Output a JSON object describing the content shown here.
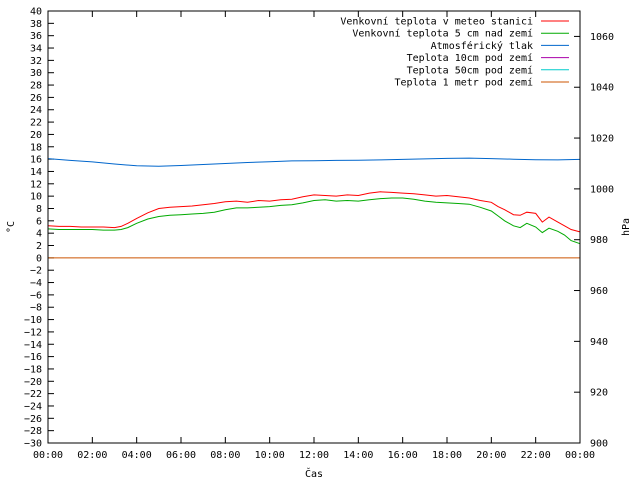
{
  "chart_data": {
    "type": "line",
    "xlabel": "Čas",
    "ylabel_left": "°C",
    "ylabel_right": "hPa",
    "x_ticks": [
      "00:00",
      "02:00",
      "04:00",
      "06:00",
      "08:00",
      "10:00",
      "12:00",
      "14:00",
      "16:00",
      "18:00",
      "20:00",
      "22:00",
      "00:00"
    ],
    "x_range_hours": [
      0,
      24
    ],
    "ylim_left": [
      -30,
      40
    ],
    "y_ticks_left": [
      -30,
      -28,
      -26,
      -24,
      -22,
      -20,
      -18,
      -16,
      -14,
      -12,
      -10,
      -8,
      -6,
      -4,
      -2,
      0,
      2,
      4,
      6,
      8,
      10,
      12,
      14,
      16,
      18,
      20,
      22,
      24,
      26,
      28,
      30,
      32,
      34,
      36,
      38,
      40
    ],
    "ylim_right": [
      900,
      1070
    ],
    "y_ticks_right": [
      900,
      920,
      940,
      960,
      980,
      1000,
      1020,
      1040,
      1060
    ],
    "legend_position": "top-right",
    "series": [
      {
        "name": "Venkovní teplota v meteo stanici",
        "axis": "left",
        "color": "#ff0000",
        "x": [
          0,
          0.5,
          1,
          1.5,
          2,
          2.5,
          3,
          3.3,
          3.6,
          4,
          4.5,
          5,
          5.5,
          6,
          6.5,
          7,
          7.5,
          8,
          8.5,
          9,
          9.5,
          10,
          10.5,
          11,
          11.5,
          12,
          12.5,
          13,
          13.5,
          14,
          14.5,
          15,
          15.5,
          16,
          16.5,
          17,
          17.5,
          18,
          18.5,
          19,
          19.5,
          20,
          20.3,
          20.6,
          21,
          21.3,
          21.6,
          22,
          22.3,
          22.6,
          23,
          23.3,
          23.6,
          24
        ],
        "values": [
          5.2,
          5.1,
          5.1,
          5.0,
          5.0,
          5.0,
          4.9,
          5.1,
          5.6,
          6.4,
          7.3,
          8.0,
          8.2,
          8.3,
          8.4,
          8.6,
          8.8,
          9.1,
          9.2,
          9.0,
          9.3,
          9.2,
          9.4,
          9.5,
          9.9,
          10.2,
          10.1,
          10.0,
          10.2,
          10.1,
          10.5,
          10.7,
          10.6,
          10.5,
          10.4,
          10.2,
          10.0,
          10.1,
          9.9,
          9.7,
          9.3,
          9.0,
          8.3,
          7.8,
          7.0,
          6.9,
          7.4,
          7.2,
          5.8,
          6.6,
          5.8,
          5.2,
          4.6,
          4.2
        ]
      },
      {
        "name": "Venkovní teplota 5 cm nad zemí",
        "axis": "left",
        "color": "#00aa00",
        "x": [
          0,
          0.5,
          1,
          1.5,
          2,
          2.5,
          3,
          3.3,
          3.6,
          4,
          4.5,
          5,
          5.5,
          6,
          6.5,
          7,
          7.5,
          8,
          8.5,
          9,
          9.5,
          10,
          10.5,
          11,
          11.5,
          12,
          12.5,
          13,
          13.5,
          14,
          14.5,
          15,
          15.5,
          16,
          16.5,
          17,
          17.5,
          18,
          18.5,
          19,
          19.5,
          20,
          20.3,
          20.6,
          21,
          21.3,
          21.6,
          22,
          22.3,
          22.6,
          23,
          23.3,
          23.6,
          24
        ],
        "values": [
          4.7,
          4.6,
          4.6,
          4.6,
          4.6,
          4.5,
          4.5,
          4.6,
          4.9,
          5.6,
          6.3,
          6.7,
          6.9,
          7.0,
          7.1,
          7.2,
          7.4,
          7.8,
          8.1,
          8.1,
          8.2,
          8.3,
          8.5,
          8.6,
          8.9,
          9.3,
          9.4,
          9.2,
          9.3,
          9.2,
          9.4,
          9.6,
          9.7,
          9.7,
          9.5,
          9.2,
          9.0,
          8.9,
          8.8,
          8.7,
          8.2,
          7.6,
          6.8,
          6.0,
          5.2,
          4.9,
          5.6,
          5.0,
          4.1,
          4.8,
          4.3,
          3.7,
          2.8,
          2.3
        ]
      },
      {
        "name": "Atmosférický tlak",
        "axis": "right",
        "color": "#0066cc",
        "x": [
          0,
          1,
          2,
          3,
          4,
          5,
          6,
          7,
          8,
          9,
          10,
          11,
          12,
          13,
          14,
          15,
          16,
          17,
          18,
          19,
          20,
          21,
          22,
          23,
          24
        ],
        "values": [
          1011.9,
          1011.2,
          1010.6,
          1009.8,
          1009.1,
          1008.9,
          1009.2,
          1009.6,
          1010.0,
          1010.4,
          1010.7,
          1011.0,
          1011.1,
          1011.2,
          1011.3,
          1011.4,
          1011.6,
          1011.8,
          1012.0,
          1012.1,
          1011.9,
          1011.7,
          1011.5,
          1011.4,
          1011.6
        ]
      },
      {
        "name": "Teplota 10cm pod zemí",
        "axis": "left",
        "color": "#aa00aa",
        "x": [],
        "values": []
      },
      {
        "name": "Teplota 50cm pod zemí",
        "axis": "left",
        "color": "#00cccc",
        "x": [],
        "values": []
      },
      {
        "name": "Teplota 1 metr pod zemí",
        "axis": "left",
        "color": "#cc5500",
        "x": [
          0,
          24
        ],
        "values": [
          0,
          0
        ]
      }
    ]
  }
}
